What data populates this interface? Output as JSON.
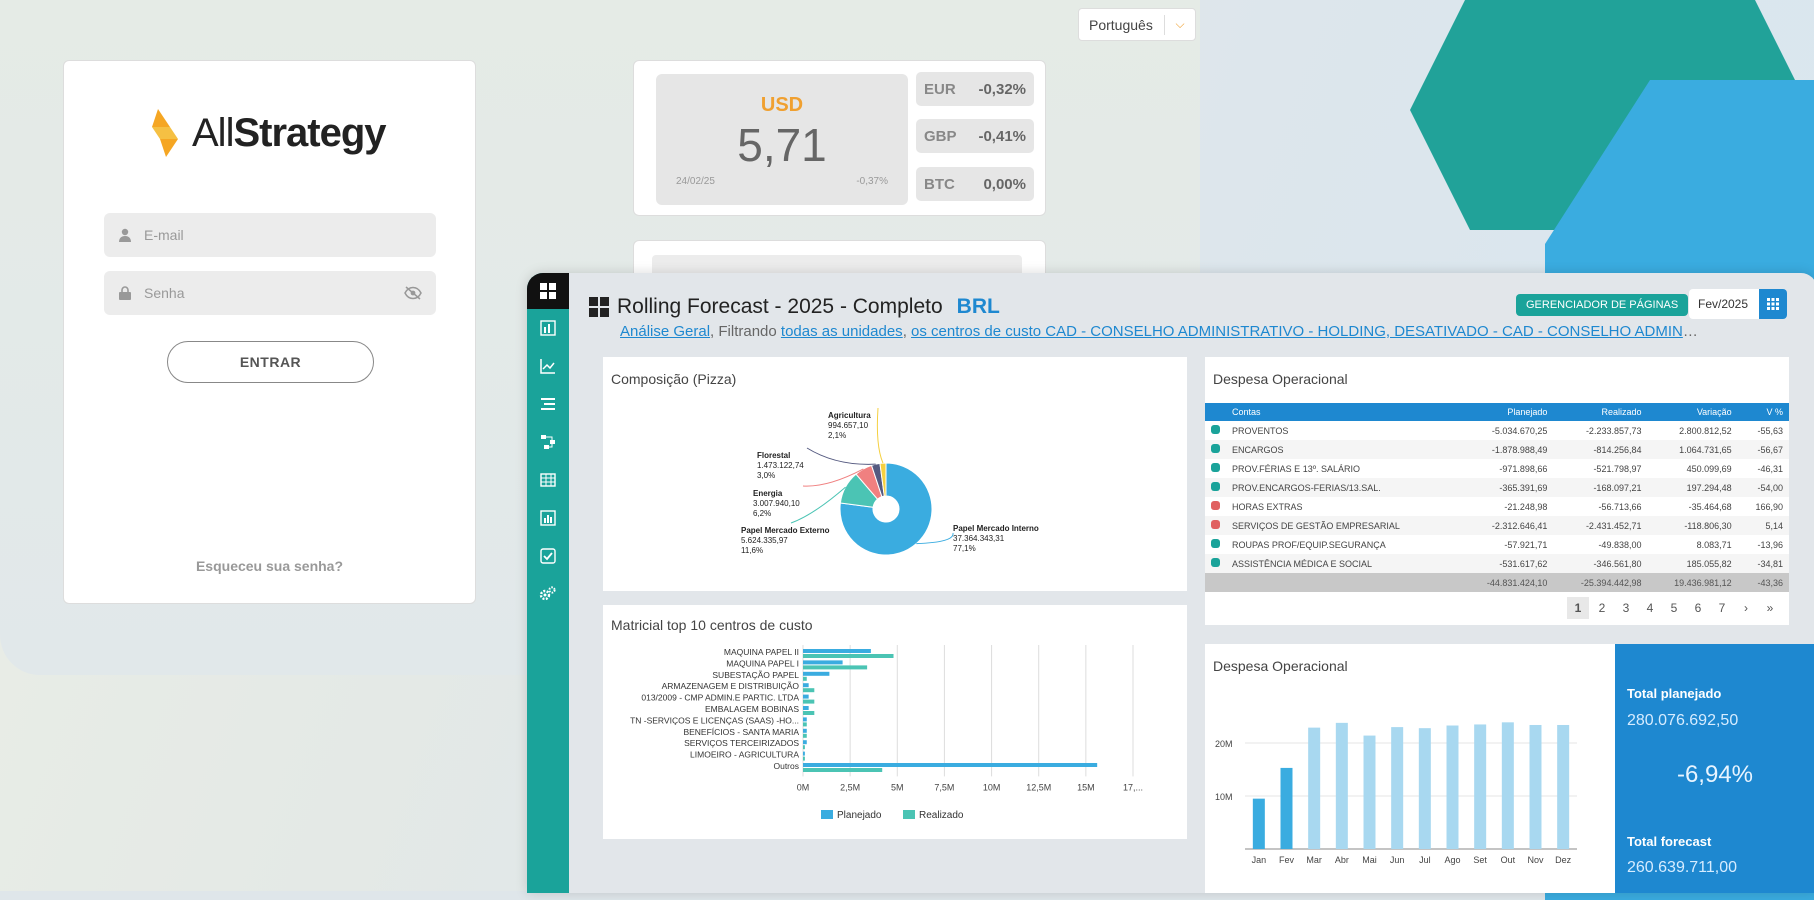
{
  "language": {
    "selected": "Português"
  },
  "login": {
    "brand_light": "All",
    "brand_bold": "Strategy",
    "email_placeholder": "E-mail",
    "password_placeholder": "Senha",
    "submit_label": "ENTRAR",
    "forgot_label": "Esqueceu sua senha?"
  },
  "currency": {
    "main": {
      "code": "USD",
      "value": "5,71",
      "date": "24/02/25",
      "change": "-0,37%"
    },
    "rows": [
      {
        "code": "EUR",
        "change": "-0,32%"
      },
      {
        "code": "GBP",
        "change": "-0,41%"
      },
      {
        "code": "BTC",
        "change": "0,00%"
      }
    ]
  },
  "dashboard": {
    "title": "Rolling Forecast - 2025 - Completo",
    "currency": "BRL",
    "page_manager_label": "GERENCIADOR DE PÁGINAS",
    "period": "Fev/2025",
    "breadcrumb": {
      "link1": "Análise Geral",
      "sep1": ", Filtrando ",
      "link2": "todas as unidades",
      "sep2": ", ",
      "link3": "os centros de custo CAD - CONSELHO ADMINISTRATIVO - HOLDING, DESATIVADO - CAD - CONSELHO ADMINIST..."
    },
    "pie_title": "Composição (Pizza)",
    "expense_table_title": "Despesa Operacional",
    "bar_title": "Matricial top 10 centros de custo",
    "monthly_title": "Despesa Operacional",
    "table": {
      "headers": [
        "Contas",
        "Planejado",
        "Realizado",
        "Variação",
        "V %"
      ],
      "rows": [
        {
          "status_color": "#1aa39a",
          "conta": "PROVENTOS",
          "planejado": "-5.034.670,25",
          "realizado": "-2.233.857,73",
          "variacao": "2.800.812,52",
          "vpct": "-55,63"
        },
        {
          "status_color": "#1aa39a",
          "conta": "ENCARGOS",
          "planejado": "-1.878.988,49",
          "realizado": "-814.256,84",
          "variacao": "1.064.731,65",
          "vpct": "-56,67"
        },
        {
          "status_color": "#1aa39a",
          "conta": "PROV.FÉRIAS E 13º. SALÁRIO",
          "planejado": "-971.898,66",
          "realizado": "-521.798,97",
          "variacao": "450.099,69",
          "vpct": "-46,31"
        },
        {
          "status_color": "#1aa39a",
          "conta": "PROV.ENCARGOS-FERIAS/13.SAL.",
          "planejado": "-365.391,69",
          "realizado": "-168.097,21",
          "variacao": "197.294,48",
          "vpct": "-54,00"
        },
        {
          "status_color": "#e06060",
          "conta": "HORAS EXTRAS",
          "planejado": "-21.248,98",
          "realizado": "-56.713,66",
          "variacao": "-35.464,68",
          "vpct": "166,90"
        },
        {
          "status_color": "#e06060",
          "conta": "SERVIÇOS DE GESTÃO EMPRESARIAL",
          "planejado": "-2.312.646,41",
          "realizado": "-2.431.452,71",
          "variacao": "-118.806,30",
          "vpct": "5,14"
        },
        {
          "status_color": "#1aa39a",
          "conta": "ROUPAS PROF/EQUIP.SEGURANÇA",
          "planejado": "-57.921,71",
          "realizado": "-49.838,00",
          "variacao": "8.083,71",
          "vpct": "-13,96"
        },
        {
          "status_color": "#1aa39a",
          "conta": "ASSISTÊNCIA MÉDICA E SOCIAL",
          "planejado": "-531.617,62",
          "realizado": "-346.561,80",
          "variacao": "185.055,82",
          "vpct": "-34,81"
        }
      ],
      "total": {
        "planejado": "-44.831.424,10",
        "realizado": "-25.394.442,98",
        "variacao": "19.436.981,12",
        "vpct": "-43,36"
      }
    },
    "pages": [
      "1",
      "2",
      "3",
      "4",
      "5",
      "6",
      "7",
      "›",
      "»"
    ],
    "kpi": {
      "planned_label": "Total planejado",
      "planned_value": "280.076.692,50",
      "variation": "-6,94%",
      "forecast_label": "Total forecast",
      "forecast_value": "260.639.711,00"
    }
  },
  "chart_data": [
    {
      "type": "pie",
      "title": "Composição (Pizza)",
      "slices": [
        {
          "label": "Papel Mercado Interno",
          "value": "37.364.343,31",
          "pct": "77,1%",
          "num": 77.1,
          "color": "#3aace0"
        },
        {
          "label": "Papel Mercado Externo",
          "value": "5.624.335,97",
          "pct": "11,6%",
          "num": 11.6,
          "color": "#4bc4b4"
        },
        {
          "label": "Energia",
          "value": "3.007.940,10",
          "pct": "6,2%",
          "num": 6.2,
          "color": "#f08080"
        },
        {
          "label": "Florestal",
          "value": "1.473.122,74",
          "pct": "3,0%",
          "num": 3.0,
          "color": "#555a80"
        },
        {
          "label": "Agricultura",
          "value": "994.657,10",
          "pct": "2,1%",
          "num": 2.1,
          "color": "#f5d040"
        }
      ]
    },
    {
      "type": "bar",
      "orientation": "horizontal",
      "title": "Matricial top 10 centros de custo",
      "categories": [
        "MAQUINA PAPEL II",
        "MAQUINA PAPEL I",
        "SUBESTAÇÃO PAPEL",
        "ARMAZENAGEM E DISTRIBUIÇÃO",
        "013/2009 - CMP ADMIN.E PARTIC. LTDA",
        "EMBALAGEM BOBINAS",
        "TN -SERVIÇOS E LICENÇAS (SAAS) -HO...",
        "BENEFÍCIOS - SANTA MARIA",
        "SERVIÇOS TERCEIRIZADOS",
        "LIMOEIRO - AGRICULTURA",
        "Outros"
      ],
      "series": [
        {
          "name": "Planejado",
          "color": "#3aace0",
          "values": [
            3.6,
            2.1,
            1.4,
            0.3,
            0.3,
            0.3,
            0.2,
            0.2,
            0.2,
            0.1,
            15.6
          ]
        },
        {
          "name": "Realizado",
          "color": "#4bc4b4",
          "values": [
            4.8,
            3.4,
            0.2,
            0.6,
            0.6,
            0.6,
            0.2,
            0.2,
            0.1,
            0.1,
            4.2
          ]
        }
      ],
      "xticks": [
        "0M",
        "2,5M",
        "5M",
        "7,5M",
        "10M",
        "12,5M",
        "15M",
        "17,..."
      ],
      "xlim": [
        0,
        17.5
      ]
    },
    {
      "type": "bar",
      "title": "Despesa Operacional",
      "categories": [
        "Jan",
        "Fev",
        "Mar",
        "Abr",
        "Mai",
        "Jun",
        "Jul",
        "Ago",
        "Set",
        "Out",
        "Nov",
        "Dez"
      ],
      "series": [
        {
          "name": "Realizado",
          "color": "#3aace0",
          "values": [
            9.5,
            15.3,
            null,
            null,
            null,
            null,
            null,
            null,
            null,
            null,
            null,
            null
          ]
        },
        {
          "name": "Forecast",
          "color": "#a8d8f0",
          "values": [
            null,
            null,
            22.9,
            23.8,
            21.4,
            23.0,
            22.8,
            23.3,
            23.5,
            23.9,
            23.4,
            23.4
          ]
        }
      ],
      "yticks": [
        "10M",
        "20M"
      ],
      "ylim": [
        0,
        26
      ]
    }
  ]
}
